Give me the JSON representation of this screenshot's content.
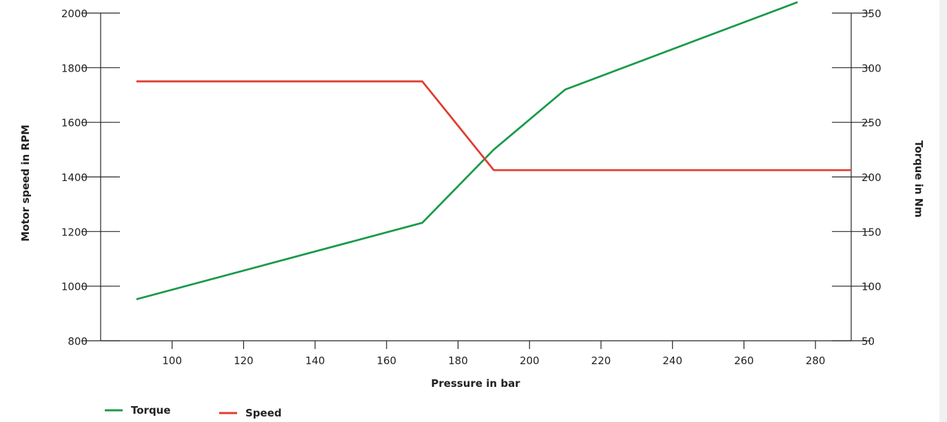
{
  "chart_data": {
    "type": "line",
    "xlabel": "Pressure in bar",
    "ylabel_left": "Motor speed in RPM",
    "ylabel_right": "Torque in Nm",
    "xlim": [
      80,
      290
    ],
    "ylim_left": [
      800,
      2000
    ],
    "ylim_right": [
      50,
      350
    ],
    "xticks": [
      100,
      120,
      140,
      160,
      180,
      200,
      220,
      240,
      260,
      280
    ],
    "yticks_left": [
      800,
      1000,
      1200,
      1400,
      1600,
      1800,
      2000
    ],
    "yticks_right": [
      50,
      100,
      150,
      200,
      250,
      300,
      350
    ],
    "grid": false,
    "legend_position": "bottom-left",
    "series": [
      {
        "name": "Torque",
        "axis": "right",
        "color": "#1a9a4a",
        "points": [
          [
            90,
            88
          ],
          [
            170,
            158
          ],
          [
            190,
            225
          ],
          [
            210,
            280
          ],
          [
            275,
            360
          ]
        ]
      },
      {
        "name": "Speed",
        "axis": "left",
        "color": "#e03c31",
        "points": [
          [
            90,
            1750
          ],
          [
            170,
            1750
          ],
          [
            190,
            1425
          ],
          [
            290,
            1425
          ]
        ]
      }
    ]
  }
}
